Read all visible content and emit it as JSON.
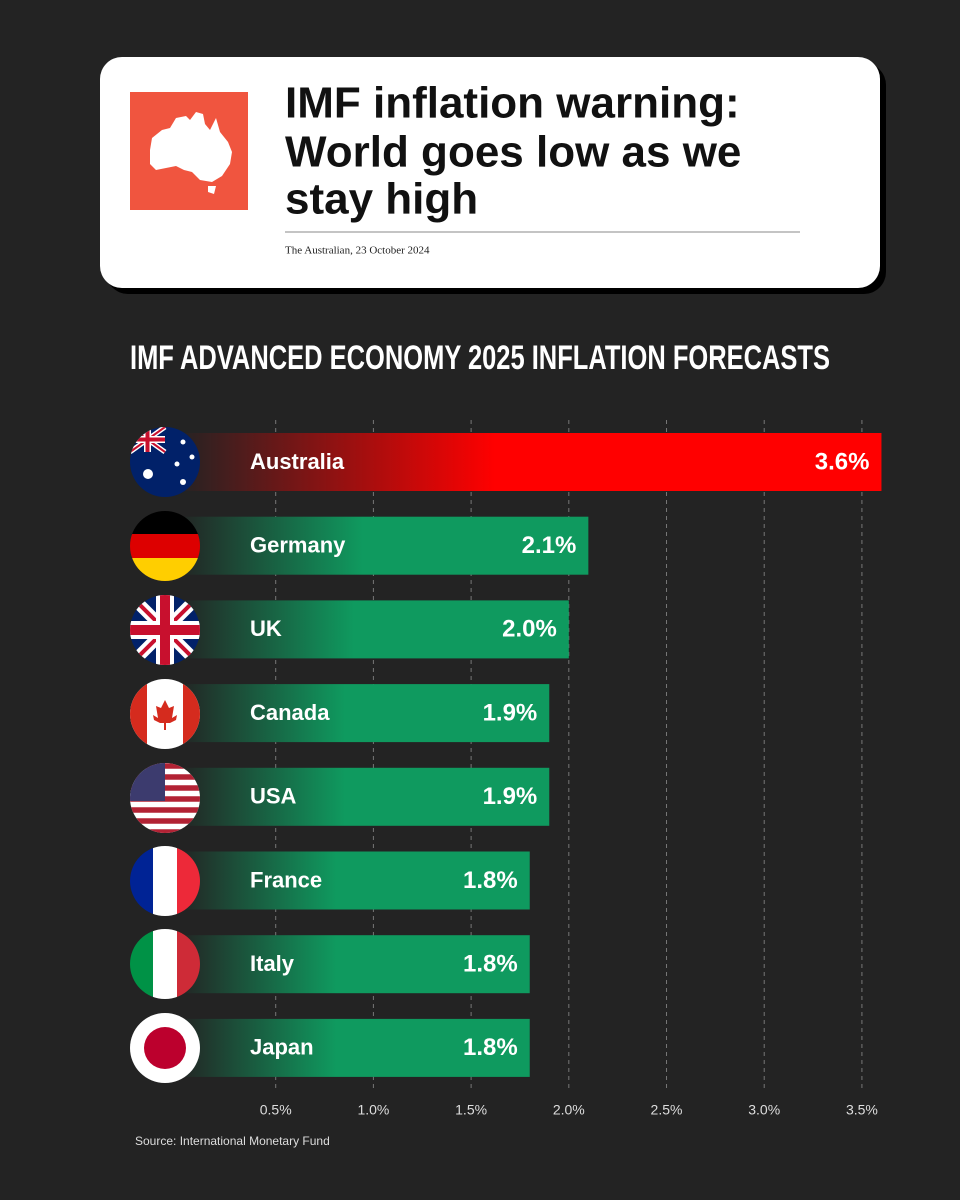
{
  "header": {
    "headline": [
      "IMF inflation warning:",
      "World goes low as we",
      "stay high"
    ],
    "citation": "The Australian, 23 October 2024"
  },
  "chart_data": {
    "type": "hbar",
    "title": "IMF ADVANCED ECONOMY 2025 INFLATION FORECASTS",
    "categories": [
      "Australia",
      "Germany",
      "UK",
      "Canada",
      "USA",
      "France",
      "Italy",
      "Japan"
    ],
    "values": [
      3.6,
      2.1,
      2.0,
      1.9,
      1.9,
      1.8,
      1.8,
      1.8
    ],
    "value_labels": [
      "3.6%",
      "2.1%",
      "2.0%",
      "1.9%",
      "1.9%",
      "1.8%",
      "1.8%",
      "1.8%"
    ],
    "colors": [
      "#ff0000",
      "#0f9a5f",
      "#0f9a5f",
      "#0f9a5f",
      "#0f9a5f",
      "#0f9a5f",
      "#0f9a5f",
      "#0f9a5f"
    ],
    "xlim": [
      0,
      3.7
    ],
    "xticks": [
      {
        "value": 0.5,
        "label": "0.5%"
      },
      {
        "value": 1.0,
        "label": "1.0%"
      },
      {
        "value": 1.5,
        "label": "1.5%"
      },
      {
        "value": 2.0,
        "label": "2.0%"
      },
      {
        "value": 2.5,
        "label": "2.5%"
      },
      {
        "value": 3.0,
        "label": "3.0%"
      },
      {
        "value": 3.5,
        "label": "3.5%"
      }
    ],
    "grid": true,
    "source": "Source: International Monetary Fund"
  }
}
